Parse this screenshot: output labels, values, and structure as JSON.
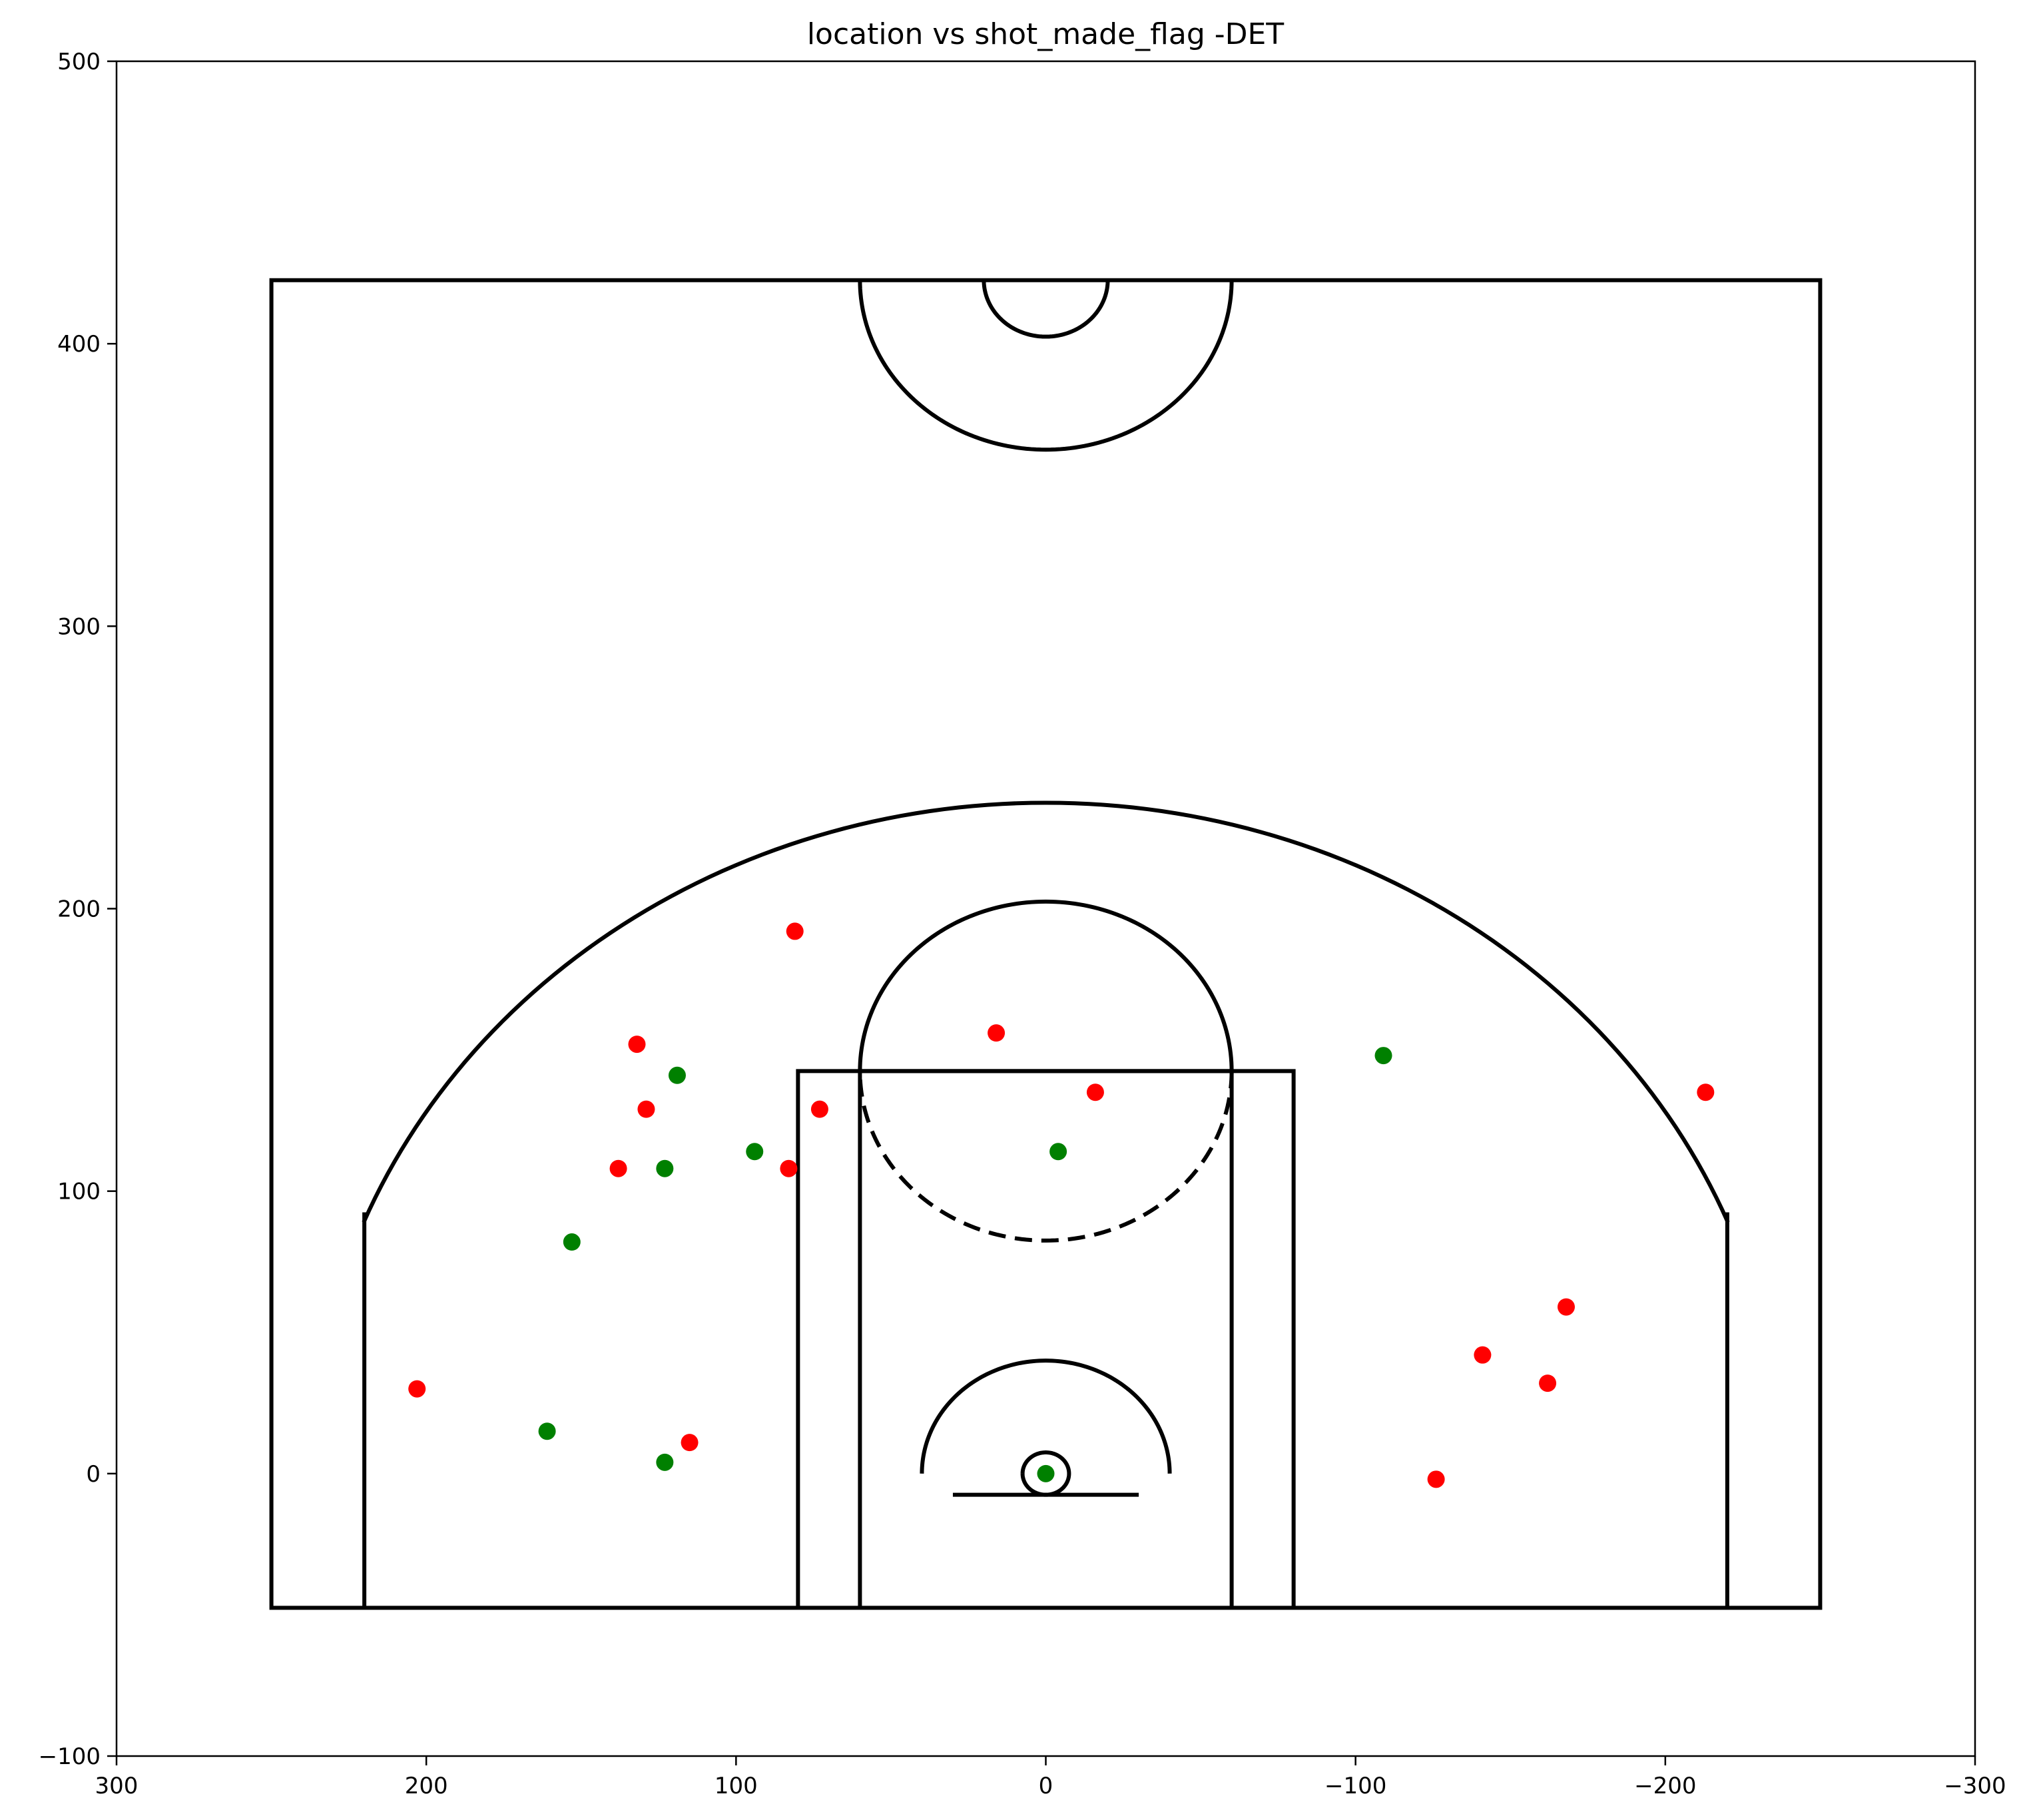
{
  "chart_data": {
    "type": "scatter",
    "title": "location vs shot_made_flag -DET",
    "xlabel": "",
    "ylabel": "",
    "xlim": [
      300,
      -300
    ],
    "ylim": [
      -100,
      500
    ],
    "x_ticks": [
      300,
      200,
      100,
      0,
      -100,
      -200,
      -300
    ],
    "x_tick_labels": [
      "300",
      "200",
      "100",
      "0",
      "−100",
      "−200",
      "−300"
    ],
    "y_ticks": [
      500,
      400,
      300,
      200,
      100,
      0,
      -100
    ],
    "y_tick_labels": [
      "500",
      "400",
      "300",
      "200",
      "100",
      "0",
      "−100"
    ],
    "grid": false,
    "legend": "none",
    "colors": {
      "made": "#008000",
      "missed": "#ff0000",
      "court": "#000000"
    },
    "series": [
      {
        "points": [
          [
            0,
            0
          ],
          [
            -4,
            114
          ],
          [
            94,
            114
          ],
          [
            119,
            141
          ],
          [
            123,
            108
          ],
          [
            153,
            82
          ],
          [
            161,
            15
          ],
          [
            123,
            4
          ],
          [
            -109,
            148
          ]
        ]
      },
      {
        "points": [
          [
            81,
            192
          ],
          [
            16,
            156
          ],
          [
            132,
            152
          ],
          [
            -16,
            135
          ],
          [
            129,
            129
          ],
          [
            73,
            129
          ],
          [
            138,
            108
          ],
          [
            83,
            108
          ],
          [
            -213,
            135
          ],
          [
            -168,
            59
          ],
          [
            -141,
            42
          ],
          [
            -162,
            32
          ],
          [
            203,
            30
          ],
          [
            115,
            11
          ],
          [
            -126,
            -2
          ]
        ]
      }
    ]
  }
}
